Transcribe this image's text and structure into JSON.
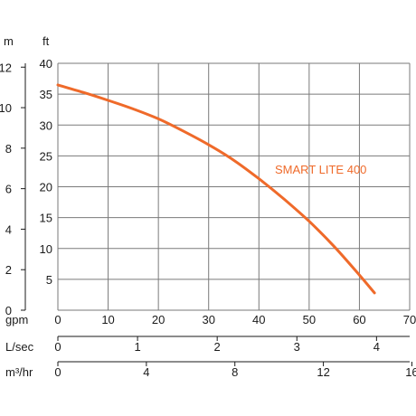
{
  "chart_data": {
    "type": "line",
    "units": {
      "left_outer": "m",
      "left_inner": "ft",
      "bottom_gpm": "gpm",
      "bottom_lsec": "L/sec",
      "bottom_m3hr": "m³/hr"
    },
    "y_ft": {
      "min": 0,
      "max": 40,
      "ticks": [
        "5",
        "10",
        "15",
        "20",
        "25",
        "30",
        "35",
        "40"
      ]
    },
    "y_m": {
      "min": 0,
      "max": 12.19,
      "ticks": [
        "0",
        "2",
        "4",
        "6",
        "8",
        "10",
        "12"
      ]
    },
    "x_gpm": {
      "min": 0,
      "max": 70,
      "ticks": [
        "0",
        "10",
        "20",
        "30",
        "40",
        "50",
        "60",
        "70"
      ]
    },
    "x_lsec": {
      "min": 0,
      "max": 4.416,
      "ticks": [
        "0",
        "1",
        "2",
        "3",
        "4"
      ]
    },
    "x_m3hr": {
      "min": 0,
      "max": 15.9,
      "ticks": [
        "0",
        "4",
        "8",
        "12",
        "16"
      ]
    },
    "grid": true,
    "series": [
      {
        "name": "SMART LITE 400",
        "color": "#ef6a2a",
        "x": [
          0,
          5,
          10,
          15,
          20,
          25,
          30,
          35,
          40,
          45,
          50,
          55,
          60,
          63
        ],
        "y": [
          36.5,
          35.3,
          34.0,
          32.6,
          31.0,
          29.0,
          26.8,
          24.3,
          21.3,
          18.0,
          14.4,
          10.3,
          5.7,
          2.8
        ]
      }
    ],
    "legend": "on-curve"
  }
}
